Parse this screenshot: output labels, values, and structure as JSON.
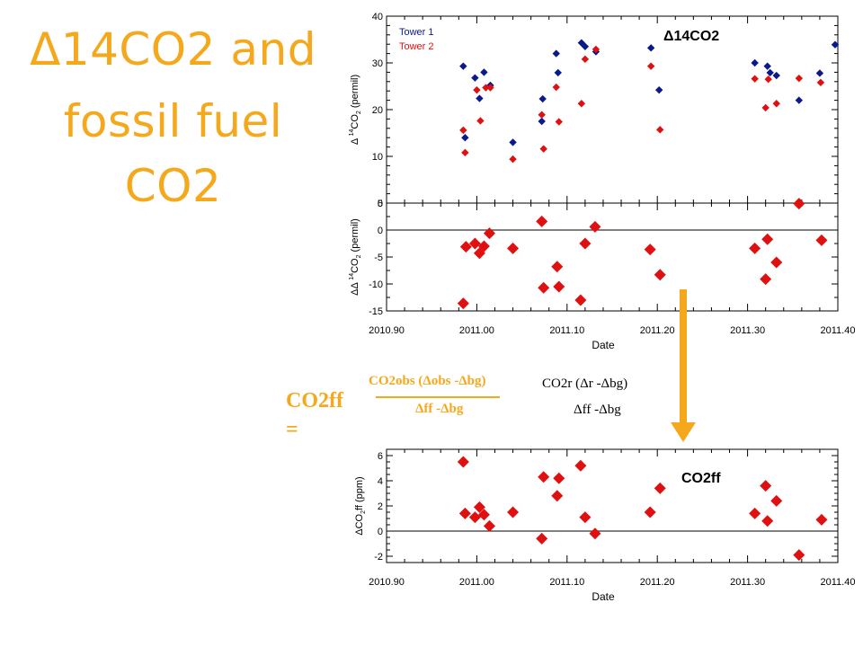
{
  "title_lines": [
    "Δ14CO2 and",
    "fossil fuel",
    "CO2"
  ],
  "labels": {
    "d14co2": "Δ14CO2",
    "co2ff": "CO2ff"
  },
  "equation": {
    "lhs": "CO2ff =",
    "num1": "CO2obs (Δobs -Δbg)",
    "den1": "Δff -Δbg",
    "num2": "CO2r (Δr -Δbg)",
    "den2": "Δff -Δbg"
  },
  "colors": {
    "title": "#f5a81c",
    "arrow": "#f5a81c",
    "tower1": "#0a1a8c",
    "tower2": "#e01010"
  },
  "chart_data": [
    {
      "type": "scatter",
      "title": "",
      "xlabel": "",
      "ylabel": "Δ 14CO2 (permil)",
      "ylim": [
        0,
        40
      ],
      "xlim": [
        2010.9,
        2011.4
      ],
      "yticks": [
        "0",
        "10",
        "20",
        "30",
        "40"
      ],
      "legend": {
        "placement": "top-left",
        "entries": [
          "Tower 1",
          "Tower 2"
        ]
      },
      "series": [
        {
          "name": "Tower 1",
          "color": "#0a1a8c",
          "points": [
            [
              2010.985,
              29.3
            ],
            [
              2010.987,
              14
            ],
            [
              2010.998,
              26.8
            ],
            [
              2011.003,
              22.4
            ],
            [
              2011.008,
              28
            ],
            [
              2011.015,
              25.2
            ],
            [
              2011.04,
              13
            ],
            [
              2011.072,
              17.5
            ],
            [
              2011.073,
              22.3
            ],
            [
              2011.088,
              32
            ],
            [
              2011.09,
              27.9
            ],
            [
              2011.116,
              34.3
            ],
            [
              2011.12,
              33.5
            ],
            [
              2011.132,
              32.4
            ],
            [
              2011.193,
              33.2
            ],
            [
              2011.202,
              24.2
            ],
            [
              2011.308,
              30
            ],
            [
              2011.322,
              29.3
            ],
            [
              2011.325,
              27.9
            ],
            [
              2011.332,
              27.3
            ],
            [
              2011.357,
              22
            ],
            [
              2011.38,
              27.8
            ],
            [
              2011.397,
              33.9
            ]
          ]
        },
        {
          "name": "Tower 2",
          "color": "#e01010",
          "points": [
            [
              2010.985,
              15.6
            ],
            [
              2010.987,
              10.8
            ],
            [
              2011.0,
              24.2
            ],
            [
              2011.004,
              17.6
            ],
            [
              2011.01,
              24.7
            ],
            [
              2011.015,
              24.7
            ],
            [
              2011.04,
              9.4
            ],
            [
              2011.072,
              18.9
            ],
            [
              2011.074,
              11.6
            ],
            [
              2011.088,
              24.8
            ],
            [
              2011.091,
              17.4
            ],
            [
              2011.116,
              21.3
            ],
            [
              2011.12,
              30.8
            ],
            [
              2011.132,
              32.9
            ],
            [
              2011.193,
              29.3
            ],
            [
              2011.203,
              15.7
            ],
            [
              2011.308,
              26.6
            ],
            [
              2011.32,
              20.4
            ],
            [
              2011.323,
              26.5
            ],
            [
              2011.332,
              21.3
            ],
            [
              2011.357,
              26.7
            ],
            [
              2011.381,
              25.8
            ]
          ]
        }
      ]
    },
    {
      "type": "scatter",
      "title": "",
      "xlabel": "Date",
      "ylabel": "ΔΔ 14CO2 (permil)",
      "ylim": [
        -15,
        5
      ],
      "xlim": [
        2010.9,
        2011.4
      ],
      "xticks": [
        "2010.90",
        "2011.00",
        "2011.10",
        "2011.20",
        "2011.30",
        "2011.40"
      ],
      "yticks": [
        "-15",
        "-10",
        "-5",
        "0",
        "5"
      ],
      "zero_line": true,
      "series": [
        {
          "color": "#e01010",
          "points": [
            [
              2010.985,
              -13.6
            ],
            [
              2010.988,
              -3.1
            ],
            [
              2010.998,
              -2.5
            ],
            [
              2011.003,
              -4.3
            ],
            [
              2011.008,
              -3.0
            ],
            [
              2011.014,
              -0.6
            ],
            [
              2011.04,
              -3.4
            ],
            [
              2011.072,
              1.6
            ],
            [
              2011.074,
              -10.7
            ],
            [
              2011.089,
              -6.8
            ],
            [
              2011.091,
              -10.5
            ],
            [
              2011.115,
              -13.0
            ],
            [
              2011.12,
              -2.5
            ],
            [
              2011.131,
              0.6
            ],
            [
              2011.192,
              -3.6
            ],
            [
              2011.203,
              -8.3
            ],
            [
              2011.308,
              -3.4
            ],
            [
              2011.32,
              -9.1
            ],
            [
              2011.322,
              -1.7
            ],
            [
              2011.332,
              -6.0
            ],
            [
              2011.357,
              4.9
            ],
            [
              2011.382,
              -1.9
            ]
          ]
        }
      ]
    },
    {
      "type": "scatter",
      "title": "",
      "xlabel": "Date",
      "ylabel": "ΔCO2ff (ppm)",
      "ylim": [
        -2.5,
        6.5
      ],
      "xlim": [
        2010.9,
        2011.4
      ],
      "xticks": [
        "2010.90",
        "2011.00",
        "2011.10",
        "2011.20",
        "2011.30",
        "2011.40"
      ],
      "yticks": [
        "-2",
        "0",
        "2",
        "4",
        "6"
      ],
      "zero_line": true,
      "series": [
        {
          "color": "#e01010",
          "points": [
            [
              2010.985,
              5.5
            ],
            [
              2010.987,
              1.4
            ],
            [
              2010.998,
              1.1
            ],
            [
              2011.003,
              1.9
            ],
            [
              2011.008,
              1.3
            ],
            [
              2011.014,
              0.4
            ],
            [
              2011.04,
              1.5
            ],
            [
              2011.072,
              -0.6
            ],
            [
              2011.074,
              4.3
            ],
            [
              2011.089,
              2.8
            ],
            [
              2011.091,
              4.2
            ],
            [
              2011.115,
              5.2
            ],
            [
              2011.12,
              1.1
            ],
            [
              2011.131,
              -0.2
            ],
            [
              2011.192,
              1.5
            ],
            [
              2011.203,
              3.4
            ],
            [
              2011.308,
              1.4
            ],
            [
              2011.32,
              3.6
            ],
            [
              2011.322,
              0.8
            ],
            [
              2011.332,
              2.4
            ],
            [
              2011.357,
              -1.9
            ],
            [
              2011.382,
              0.9
            ]
          ]
        }
      ]
    }
  ]
}
